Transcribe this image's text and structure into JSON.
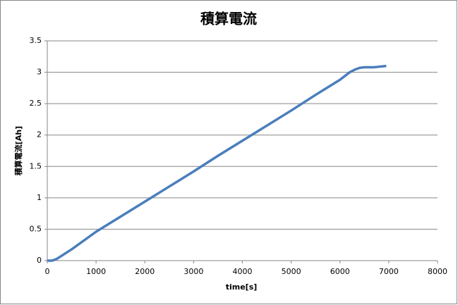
{
  "chart_data": {
    "type": "line",
    "title": "積算電流",
    "x_label": "time[s]",
    "y_label": "積算電流[Ah]",
    "x": [
      0,
      100,
      200,
      500,
      1000,
      1500,
      2000,
      2500,
      3000,
      3500,
      4000,
      4500,
      5000,
      5500,
      6000,
      6200,
      6300,
      6400,
      6500,
      6700,
      6950
    ],
    "series": [
      {
        "name": "積算電流",
        "color": "#4a7ebb",
        "values": [
          0,
          0,
          0.03,
          0.18,
          0.46,
          0.7,
          0.94,
          1.18,
          1.42,
          1.67,
          1.91,
          2.15,
          2.39,
          2.64,
          2.88,
          3.0,
          3.04,
          3.07,
          3.08,
          3.08,
          3.1
        ]
      }
    ],
    "xlim": [
      0,
      8000
    ],
    "xticks": [
      0,
      1000,
      2000,
      3000,
      4000,
      5000,
      6000,
      7000,
      8000
    ],
    "ylim": [
      0,
      3.5
    ],
    "yticks": [
      0,
      0.5,
      1,
      1.5,
      2,
      2.5,
      3,
      3.5
    ],
    "grid": true
  }
}
